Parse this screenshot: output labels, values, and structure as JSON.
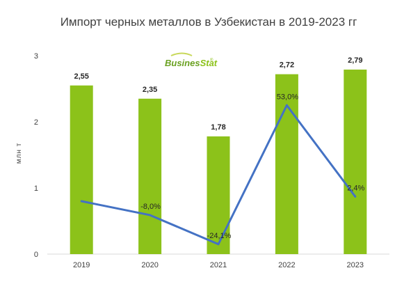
{
  "chart_data": {
    "type": "bar",
    "title": "Импорт черных металлов в Узбекистан в 2019-2023 гг",
    "ylabel": "млн т",
    "xlabel": "",
    "ylim": [
      0,
      3
    ],
    "yticks": [
      0,
      1,
      2,
      3
    ],
    "categories": [
      "2019",
      "2020",
      "2021",
      "2022",
      "2023"
    ],
    "series": [
      {
        "type": "bar",
        "values": [
          2.55,
          2.35,
          1.78,
          2.72,
          2.79
        ],
        "labels": [
          "2,55",
          "2,35",
          "1,78",
          "2,72",
          "2,79"
        ],
        "color": "#8cc21a"
      },
      {
        "type": "line",
        "values": [
          0.8,
          0.59,
          0.15,
          2.25,
          0.87
        ],
        "labels": [
          "",
          "-8,0%",
          "-24,1%",
          "53,0%",
          "2,4%"
        ],
        "color": "#4472c4"
      }
    ],
    "grid": false,
    "legend": "none"
  },
  "logo": {
    "part1": "Busines",
    "part2": "Stat",
    "mark": "®",
    "color1": "#6aa121",
    "color2": "#8cc21a"
  }
}
